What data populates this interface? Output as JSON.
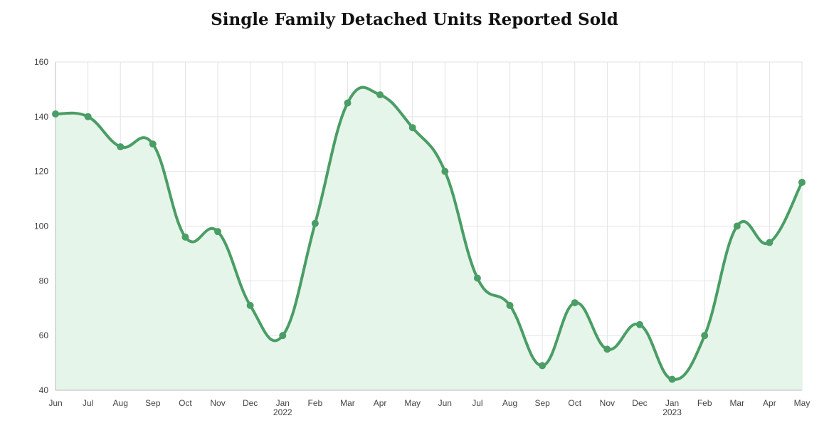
{
  "chart_data": {
    "type": "area",
    "title": "Single Family Detached Units Reported Sold",
    "xlabel": "",
    "ylabel": "",
    "categories": [
      "Jun",
      "Jul",
      "Aug",
      "Sep",
      "Oct",
      "Nov",
      "Dec",
      "Jan",
      "Feb",
      "Mar",
      "Apr",
      "May",
      "Jun",
      "Jul",
      "Aug",
      "Sep",
      "Oct",
      "Nov",
      "Dec",
      "Jan",
      "Feb",
      "Mar",
      "Apr",
      "May"
    ],
    "year_labels": [
      "",
      "",
      "",
      "",
      "",
      "",
      "",
      "2022",
      "",
      "",
      "",
      "",
      "",
      "",
      "",
      "",
      "",
      "",
      "",
      "2023",
      "",
      "",
      "",
      ""
    ],
    "series": [
      {
        "values": [
          141,
          140,
          129,
          130,
          96,
          98,
          71,
          60,
          101,
          145,
          148,
          136,
          120,
          81,
          71,
          49,
          72,
          55,
          64,
          44,
          60,
          100,
          94,
          116
        ]
      }
    ],
    "ylim": [
      40,
      160
    ],
    "yticks": [
      40,
      60,
      80,
      100,
      120,
      140,
      160
    ],
    "grid": true,
    "colors": {
      "line": "#4a9e65",
      "fill": "#e6f5ea",
      "grid": "#e3e3e3",
      "axis": "#bbbbbb"
    }
  }
}
